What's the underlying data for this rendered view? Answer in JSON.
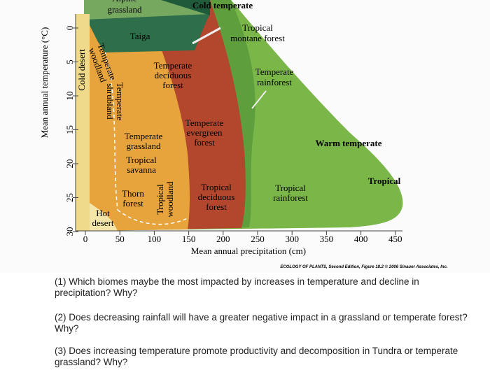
{
  "diagram": {
    "y_axis_title": "Mean annual temperature (°C)",
    "x_axis_title": "Mean annual precipitation (cm)",
    "y_ticks": [
      0,
      5,
      10,
      15,
      20,
      25,
      30
    ],
    "x_ticks": [
      0,
      50,
      100,
      150,
      200,
      250,
      300,
      350,
      400,
      450
    ],
    "zones": [
      "Cold temperate",
      "Warm temperate",
      "Tropical"
    ],
    "biomes": [
      [
        "Alpine",
        "grassland"
      ],
      [
        "Taiga"
      ],
      [
        "Tropical",
        "montane forest"
      ],
      [
        "Temperate",
        "deciduous",
        "forest"
      ],
      [
        "Temperate",
        "rainforest"
      ],
      [
        "Temperate",
        "evergreen",
        "forest"
      ],
      [
        "Temperate",
        "grassland"
      ],
      [
        "Tropical",
        "savanna"
      ],
      [
        "Tropical",
        "deciduous",
        "forest"
      ],
      [
        "Tropical",
        "rainforest"
      ],
      [
        "Thorn",
        "forest"
      ],
      [
        "Hot",
        "desert"
      ],
      [
        "Cold desert"
      ],
      [
        "Temperate",
        "woodland"
      ],
      [
        "Temperate",
        "shrubland"
      ],
      [
        "Tropical",
        "woodland"
      ]
    ],
    "credit": "ECOLOGY OF PLANTS, Second Edition, Figure 18.2 © 2006 Sinauer Associates, Inc."
  },
  "questions": [
    "(1) Which biomes maybe the most impacted by increases in temperature and decline in precipitation? Why?",
    "(2) Does decreasing rainfall will have a greater negative impact in a grassland or temperate forest? Why?",
    "(3) Does increasing temperature promote productivity and decomposition in Tundra or temperate grassland? Why?"
  ]
}
